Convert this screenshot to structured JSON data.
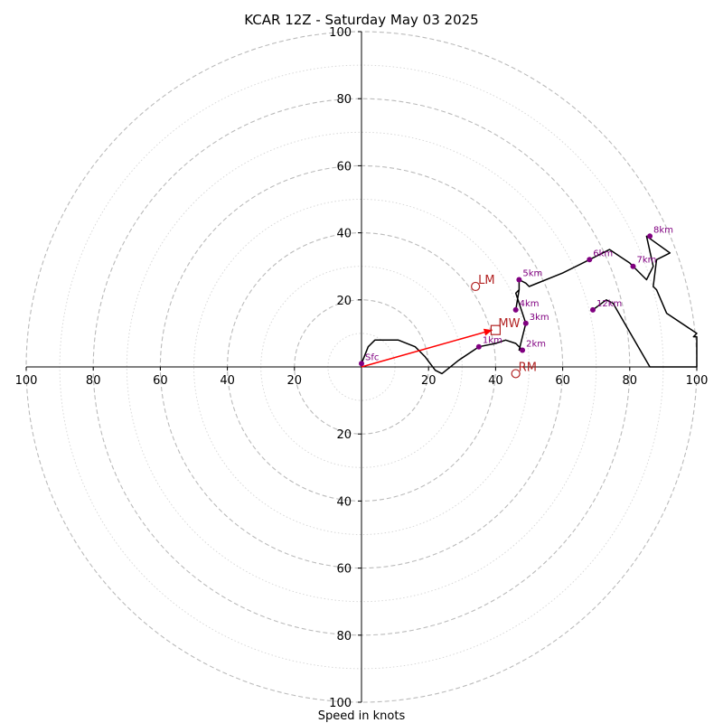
{
  "chart_data": {
    "type": "scatter",
    "title": "KCAR 12Z - Saturday May 03 2025",
    "xlabel": "Speed in knots",
    "xlim": [
      -100,
      100
    ],
    "ylim": [
      -100,
      100
    ],
    "ring_step": 20,
    "x_ticks": [
      "100",
      "80",
      "60",
      "40",
      "20",
      "20",
      "40",
      "60",
      "80",
      "100"
    ],
    "y_ticks": [
      "100",
      "80",
      "60",
      "40",
      "20",
      "20",
      "40",
      "60",
      "80",
      "100"
    ],
    "hodograph": [
      [
        0,
        1
      ],
      [
        2,
        6
      ],
      [
        4,
        8
      ],
      [
        11,
        8
      ],
      [
        16,
        6
      ],
      [
        19,
        3
      ],
      [
        22,
        -1
      ],
      [
        24,
        -2
      ],
      [
        29,
        2
      ],
      [
        35,
        6
      ],
      [
        40,
        7
      ],
      [
        43,
        8
      ],
      [
        46,
        7
      ],
      [
        48,
        5
      ],
      [
        47,
        5
      ],
      [
        48,
        9
      ],
      [
        49,
        13
      ],
      [
        48,
        16
      ],
      [
        47,
        19
      ],
      [
        46,
        22
      ],
      [
        47,
        23
      ],
      [
        46,
        17
      ],
      [
        47,
        23
      ],
      [
        47,
        26
      ],
      [
        49,
        25
      ],
      [
        50,
        24
      ],
      [
        60,
        28
      ],
      [
        68,
        32
      ],
      [
        74,
        35
      ],
      [
        77,
        33
      ],
      [
        80,
        31
      ],
      [
        82,
        29
      ],
      [
        85,
        26
      ],
      [
        87,
        30
      ],
      [
        85,
        39
      ],
      [
        92,
        34
      ],
      [
        88,
        32
      ],
      [
        87,
        24
      ],
      [
        88,
        23
      ],
      [
        91,
        16
      ],
      [
        100,
        10
      ],
      [
        99,
        9
      ],
      [
        100,
        9
      ],
      [
        100,
        0
      ],
      [
        86,
        0
      ],
      [
        75,
        19
      ],
      [
        73,
        20
      ],
      [
        69,
        17
      ]
    ],
    "heights": [
      {
        "label": "Sfc",
        "u": 0,
        "v": 1
      },
      {
        "label": "1km",
        "u": 35,
        "v": 6
      },
      {
        "label": "2km",
        "u": 48,
        "v": 5
      },
      {
        "label": "3km",
        "u": 49,
        "v": 13
      },
      {
        "label": "4km",
        "u": 46,
        "v": 17
      },
      {
        "label": "5km",
        "u": 47,
        "v": 26
      },
      {
        "label": "6km",
        "u": 68,
        "v": 32
      },
      {
        "label": "7km",
        "u": 81,
        "v": 30
      },
      {
        "label": "8km",
        "u": 86,
        "v": 39
      },
      {
        "label": "12km",
        "u": 69,
        "v": 17
      }
    ],
    "markers": [
      {
        "label": "LM",
        "u": 34,
        "v": 24,
        "shape": "circle"
      },
      {
        "label": "MW",
        "u": 40,
        "v": 11,
        "shape": "square"
      },
      {
        "label": "RM",
        "u": 46,
        "v": -2,
        "shape": "circle"
      }
    ],
    "shear_vector": {
      "from": [
        0,
        0
      ],
      "to": [
        39,
        11
      ]
    },
    "colors": {
      "hodograph": "#000000",
      "height_points": "#800080",
      "markers": "#b22222",
      "vector": "#ff0000",
      "grid": "#bbbbbb"
    }
  }
}
